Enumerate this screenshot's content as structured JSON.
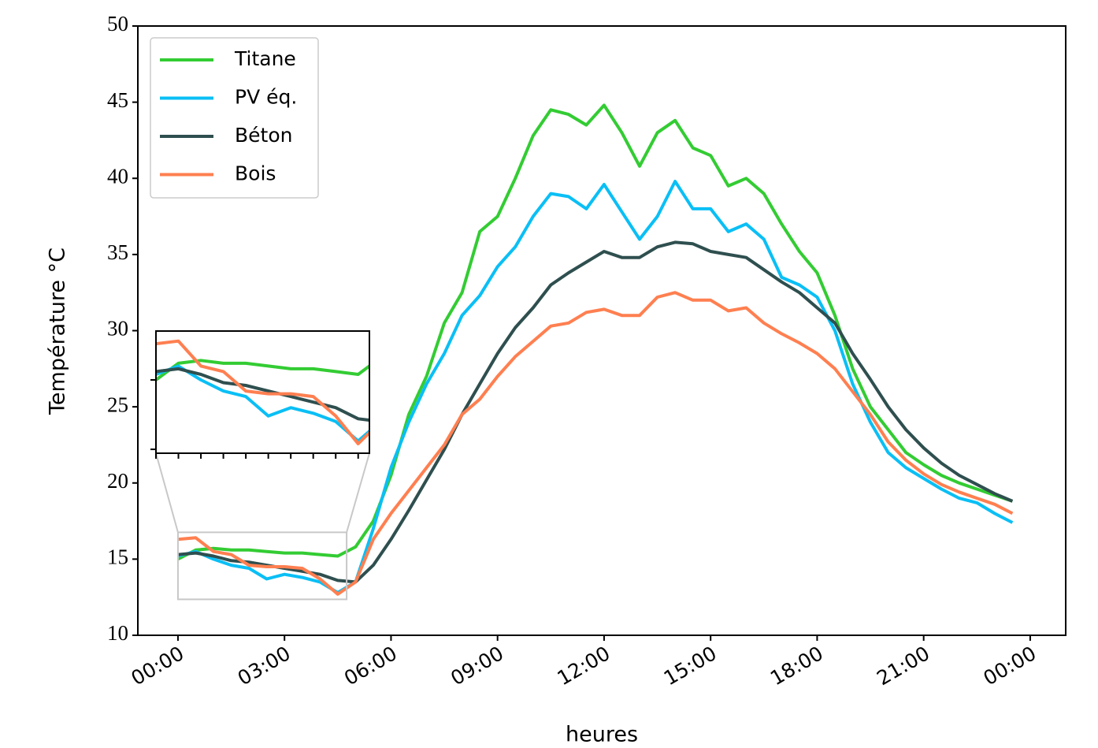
{
  "chart_data": {
    "type": "line",
    "x_label": "heures",
    "y_label": "Température °C",
    "x": [
      0,
      0.5,
      1,
      1.5,
      2,
      2.5,
      3,
      3.5,
      4,
      4.5,
      5,
      5.5,
      6,
      6.5,
      7,
      7.5,
      8,
      8.5,
      9,
      9.5,
      10,
      10.5,
      11,
      11.5,
      12,
      12.5,
      13,
      13.5,
      14,
      14.5,
      15,
      15.5,
      16,
      16.5,
      17,
      17.5,
      18,
      18.5,
      19,
      19.5,
      20,
      20.5,
      21,
      21.5,
      22,
      22.5,
      23,
      23.5
    ],
    "series": [
      {
        "name": "Titane",
        "color": "#33cc33",
        "values": [
          15.0,
          15.6,
          15.7,
          15.6,
          15.6,
          15.5,
          15.4,
          15.4,
          15.3,
          15.2,
          15.8,
          17.5,
          20.5,
          24.5,
          27,
          30.5,
          32.5,
          36.5,
          37.5,
          40,
          42.8,
          44.5,
          44.2,
          43.5,
          44.8,
          43,
          40.8,
          43,
          43.8,
          42,
          41.5,
          39.5,
          40,
          39,
          37,
          35.2,
          33.8,
          31,
          27.5,
          25,
          23.5,
          22,
          21.2,
          20.5,
          20,
          19.6,
          19.2,
          18.8
        ]
      },
      {
        "name": "PV éq.",
        "color": "#0abff5",
        "values": [
          15.2,
          15.5,
          15.0,
          14.6,
          14.4,
          13.7,
          14.0,
          13.8,
          13.5,
          12.8,
          13.5,
          17,
          21,
          24,
          26.5,
          28.5,
          31,
          32.3,
          34.2,
          35.5,
          37.5,
          39,
          38.8,
          38,
          39.6,
          37.8,
          36,
          37.5,
          39.8,
          38,
          38,
          36.5,
          37,
          36,
          33.5,
          33,
          32.2,
          30,
          26.5,
          24,
          22,
          21,
          20.3,
          19.6,
          19,
          18.7,
          18,
          17.4
        ]
      },
      {
        "name": "Béton",
        "color": "#2f4f4f",
        "values": [
          15.3,
          15.4,
          15.2,
          14.9,
          14.8,
          14.6,
          14.4,
          14.2,
          14.0,
          13.6,
          13.5,
          14.6,
          16.3,
          18.2,
          20.2,
          22.2,
          24.5,
          26.5,
          28.5,
          30.2,
          31.5,
          33,
          33.8,
          34.5,
          35.2,
          34.8,
          34.8,
          35.5,
          35.8,
          35.7,
          35.2,
          35,
          34.8,
          34,
          33.2,
          32.5,
          31.5,
          30.5,
          28.5,
          26.8,
          25,
          23.5,
          22.3,
          21.3,
          20.5,
          19.9,
          19.3,
          18.8
        ]
      },
      {
        "name": "Bois",
        "color": "#ff7f50",
        "values": [
          16.3,
          16.4,
          15.5,
          15.3,
          14.6,
          14.5,
          14.5,
          14.4,
          13.7,
          12.7,
          13.5,
          16.3,
          18,
          19.5,
          21,
          22.5,
          24.5,
          25.5,
          27,
          28.3,
          29.3,
          30.3,
          30.5,
          31.2,
          31.4,
          31,
          31,
          32.2,
          32.5,
          32,
          32,
          31.3,
          31.5,
          30.5,
          29.8,
          29.2,
          28.5,
          27.5,
          26,
          24.5,
          22.7,
          21.5,
          20.6,
          19.9,
          19.4,
          19,
          18.6,
          18.0
        ]
      }
    ],
    "xlim": [
      -1.13,
      25
    ],
    "ylim": [
      10,
      50
    ],
    "xticks": [
      {
        "value": 0,
        "label": "00:00"
      },
      {
        "value": 3,
        "label": "03:00"
      },
      {
        "value": 6,
        "label": "06:00"
      },
      {
        "value": 9,
        "label": "09:00"
      },
      {
        "value": 12,
        "label": "12:00"
      },
      {
        "value": 15,
        "label": "15:00"
      },
      {
        "value": 18,
        "label": "18:00"
      },
      {
        "value": 21,
        "label": "21:00"
      },
      {
        "value": 24,
        "label": "00:00"
      }
    ],
    "yticks": [
      10,
      15,
      20,
      25,
      30,
      35,
      40,
      45,
      50
    ],
    "legend": "upper left",
    "inset": {
      "xlim": [
        0,
        4.75
      ],
      "ylim": [
        12.36,
        16.76
      ],
      "xticks": [
        0,
        0.5,
        1,
        1.5,
        2,
        2.5,
        3,
        3.5,
        4,
        4.5
      ],
      "yticks": [
        12.5,
        15
      ]
    }
  }
}
